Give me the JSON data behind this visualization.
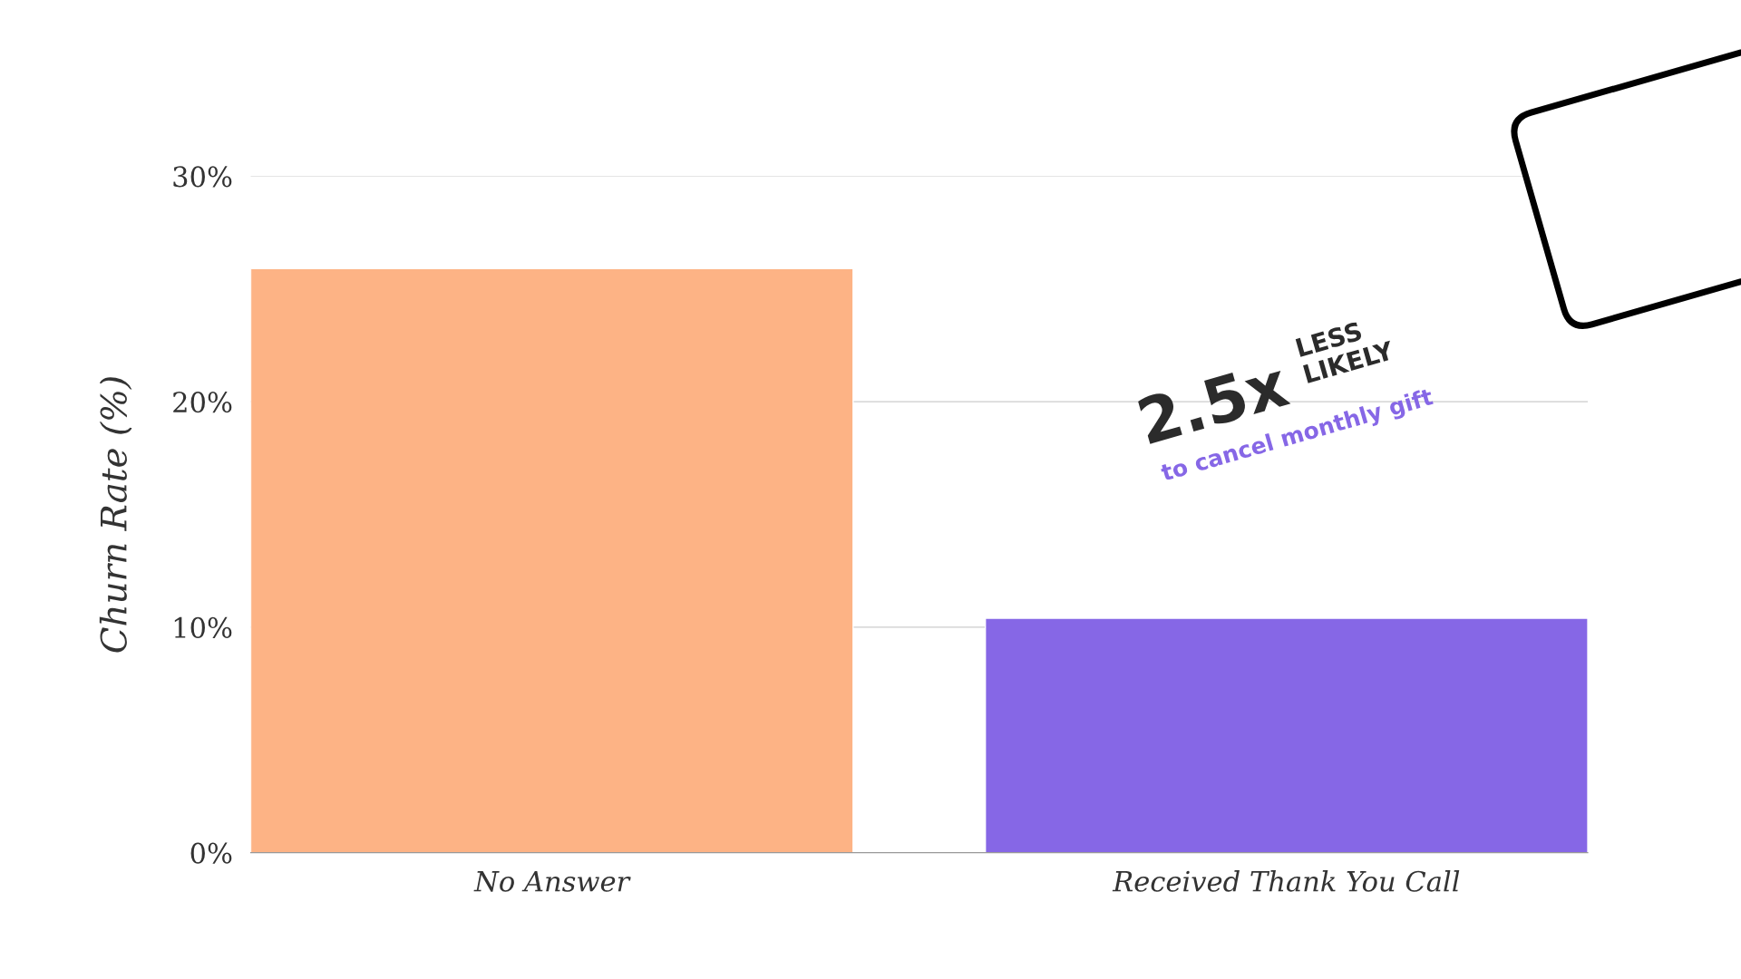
{
  "chart_data": {
    "type": "bar",
    "ylabel": "Churn Rate (%)",
    "categories": [
      "No Answer",
      "Received Thank You Call"
    ],
    "values": [
      25.9,
      10.4
    ],
    "colors": [
      "#fdb385",
      "#8667e6"
    ],
    "ylim": [
      0,
      30
    ],
    "yticks": [
      {
        "value": 0,
        "label": "0%"
      },
      {
        "value": 10,
        "label": "10%"
      },
      {
        "value": 20,
        "label": "20%"
      },
      {
        "value": 30,
        "label": "30%"
      }
    ],
    "grid": "y",
    "annotations": [
      "2.5x",
      "LESS\nLIKELY",
      "to cancel monthly gift"
    ]
  }
}
